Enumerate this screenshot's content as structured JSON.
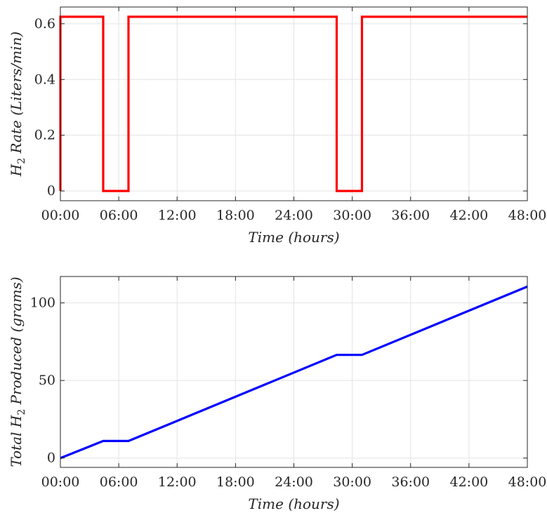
{
  "chart_data": [
    {
      "type": "line",
      "xlabel": "Time (hours)",
      "ylabel_parts": [
        "H",
        "2",
        " Rate (Liters/min)"
      ],
      "xlim": [
        0,
        48
      ],
      "ylim": [
        -0.035,
        0.66
      ],
      "xticks": [
        0,
        6,
        12,
        18,
        24,
        30,
        36,
        42,
        48
      ],
      "xtick_labels": [
        "00:00",
        "06:00",
        "12:00",
        "18:00",
        "24:00",
        "30:00",
        "36:00",
        "42:00",
        "48:00"
      ],
      "yticks": [
        0,
        0.2,
        0.4,
        0.6
      ],
      "ytick_labels": [
        "0",
        "0.2",
        "0.4",
        "0.6"
      ],
      "grid": true,
      "series": [
        {
          "color": "#ff0000",
          "x": [
            0,
            0,
            4.4,
            4.4,
            7.0,
            7.0,
            28.4,
            28.4,
            31.0,
            31.0,
            48
          ],
          "y": [
            0,
            0.625,
            0.625,
            0,
            0,
            0.625,
            0.625,
            0,
            0,
            0.625,
            0.625
          ]
        }
      ]
    },
    {
      "type": "line",
      "xlabel": "Time (hours)",
      "ylabel_parts": [
        "Total H",
        "2",
        " Produced (grams)"
      ],
      "xlim": [
        0,
        48
      ],
      "ylim": [
        -6,
        117
      ],
      "xticks": [
        0,
        6,
        12,
        18,
        24,
        30,
        36,
        42,
        48
      ],
      "xtick_labels": [
        "00:00",
        "06:00",
        "12:00",
        "18:00",
        "24:00",
        "30:00",
        "36:00",
        "42:00",
        "48:00"
      ],
      "yticks": [
        0,
        50,
        100
      ],
      "ytick_labels": [
        "0",
        "50",
        "100"
      ],
      "grid": true,
      "series": [
        {
          "color": "#0000ff",
          "x": [
            0,
            4.4,
            7.0,
            28.4,
            31.0,
            48
          ],
          "y": [
            0,
            11,
            11,
            66.5,
            66.5,
            110.5
          ]
        }
      ]
    }
  ]
}
